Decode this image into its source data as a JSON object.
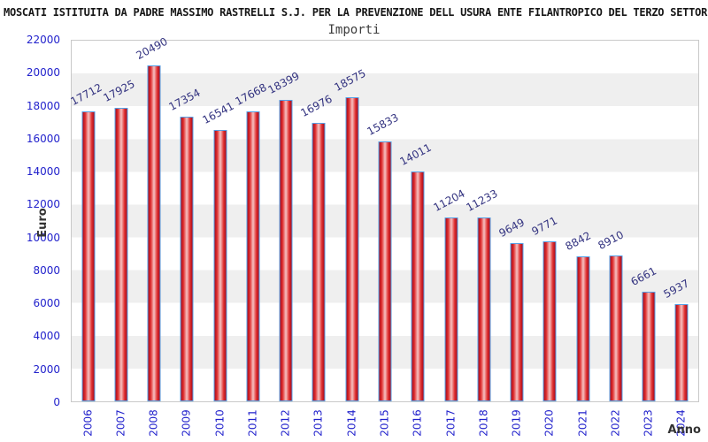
{
  "chart_data": {
    "type": "bar",
    "title": "MOSCATI ISTITUITA DA PADRE MASSIMO RASTRELLI S.J. PER LA PREVENZIONE DELL USURA ENTE FILANTROPICO DEL TERZO SETTORE",
    "subtitle": "Importi",
    "xlabel": "Anno",
    "ylabel": "Euro",
    "categories": [
      "2006",
      "2007",
      "2008",
      "2009",
      "2010",
      "2011",
      "2012",
      "2013",
      "2014",
      "2015",
      "2016",
      "2017",
      "2018",
      "2019",
      "2020",
      "2021",
      "2022",
      "2023",
      "2024"
    ],
    "values": [
      17712,
      17925,
      20490,
      17354,
      16541,
      17668,
      18399,
      16976,
      18575,
      15833,
      14011,
      11204,
      11233,
      9649,
      9771,
      8842,
      8910,
      6661,
      5937
    ],
    "ylim": [
      0,
      22000
    ],
    "ytick_step": 2000,
    "legend": "none",
    "grid": "alternating horizontal bands every 2000",
    "value_labels": "shown above bars, rotated",
    "colors": {
      "bar_fill_edge": "#a80b1b",
      "bar_fill_mid": "#e03030",
      "bar_fill_highlight": "#f6c2c2",
      "bar_border": "#55a0e6",
      "axis_tick_label": "#2222cc",
      "value_label": "#333380",
      "band_gray": "#efefef",
      "band_white": "#ffffff",
      "axis_title": "#333333",
      "plot_border": "#c9c9c9"
    }
  }
}
